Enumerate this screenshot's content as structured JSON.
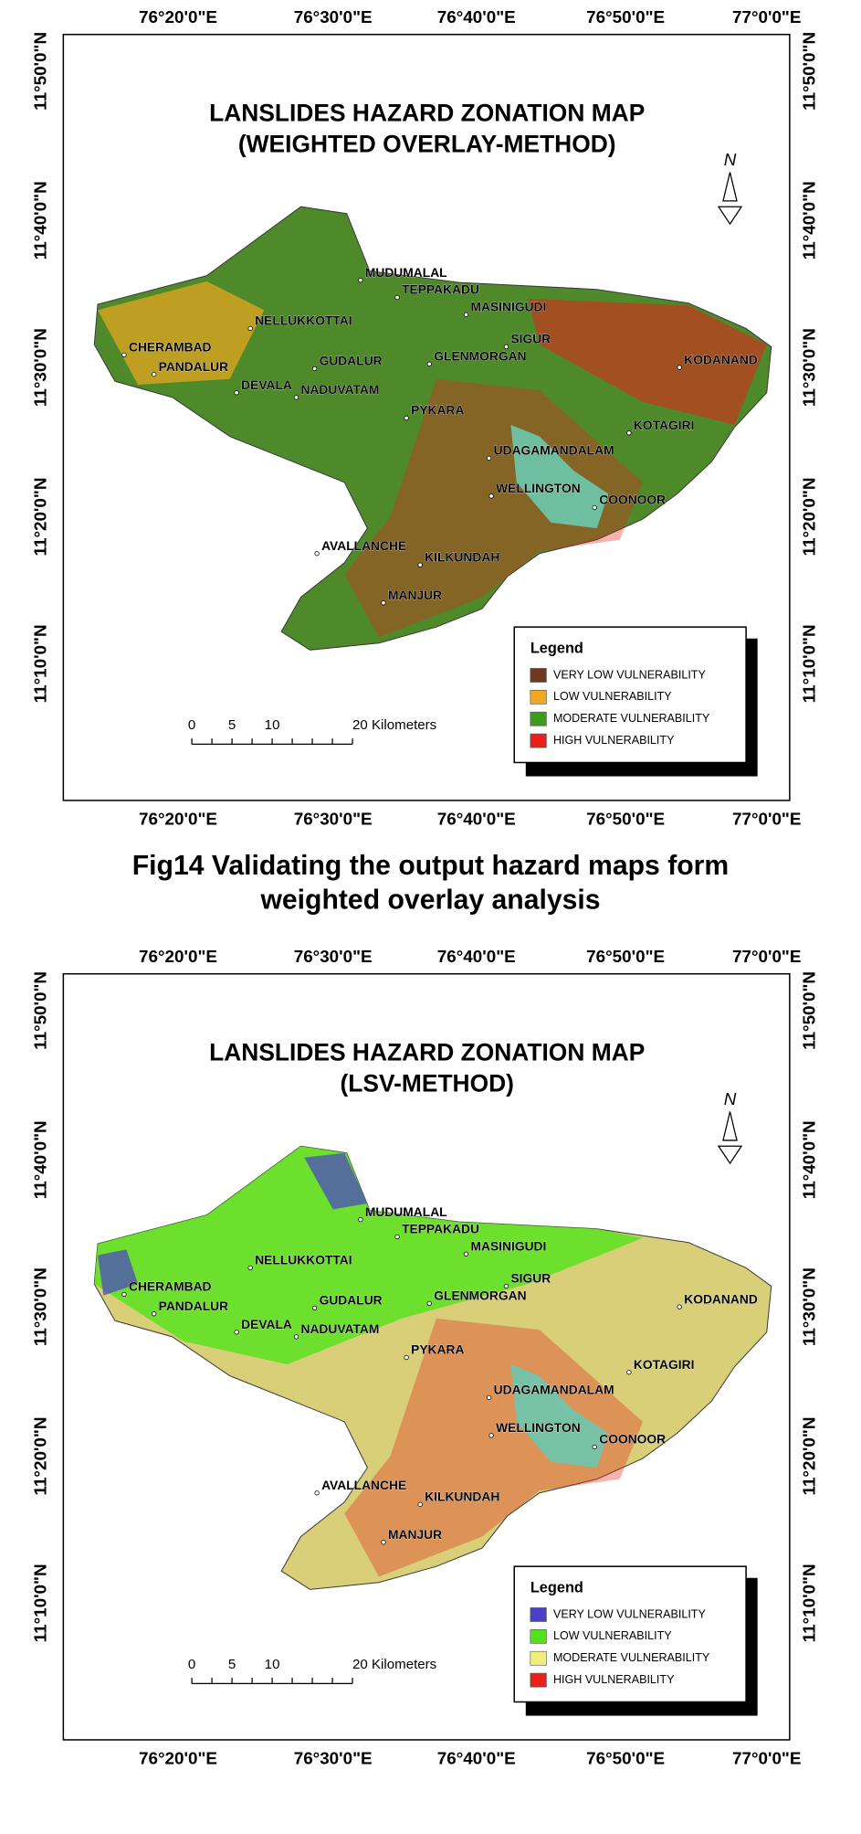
{
  "maps": [
    {
      "title": [
        "LANSLIDES HAZARD ZONATION MAP",
        "(WEIGHTED OVERLAY-METHOD)"
      ],
      "lon_labels": [
        "76°20'0\"E",
        "76°30'0\"E",
        "76°40'0\"E",
        "76°50'0\"E",
        "77°0'0\"E"
      ],
      "lat_labels": [
        "11°50'0\"N",
        "11°40'0\"N",
        "11°30'0\"N",
        "11°20'0\"N",
        "11°10'0\"N"
      ],
      "places": [
        "MUDUMALAL",
        "TEPPAKADU",
        "MASINIGUDI",
        "NELLUKKOTTAI",
        "CHERAMBAD",
        "SIGUR",
        "PANDALUR",
        "GUDALUR",
        "GLENMORGAN",
        "KODANAND",
        "DEVALA",
        "NADUVATAM",
        "PYKARA",
        "KOTAGIRI",
        "UDAGAMANDALAM",
        "WELLINGTON",
        "COONOOR",
        "AVALLANCHE",
        "KILKUNDAH",
        "MANJUR"
      ],
      "north": "N",
      "scale": [
        "0",
        "5",
        "10",
        "20 Kilometers"
      ],
      "legend": {
        "title": "Legend",
        "items": [
          {
            "label": "VERY LOW VULNERABILITY",
            "color": "#6b3a1f"
          },
          {
            "label": "LOW VULNERABILITY",
            "color": "#f0a820"
          },
          {
            "label": "MODERATE VULNERABILITY",
            "color": "#3e9a1e"
          },
          {
            "label": "HIGH VULNERABILITY",
            "color": "#e8201c"
          }
        ]
      },
      "base_color": "#4f8a2a"
    },
    {
      "title": [
        "LANSLIDES HAZARD ZONATION MAP",
        "(LSV-METHOD)"
      ],
      "lon_labels": [
        "76°20'0\"E",
        "76°30'0\"E",
        "76°40'0\"E",
        "76°50'0\"E",
        "77°0'0\"E"
      ],
      "lat_labels": [
        "11°50'0\"N",
        "11°40'0\"N",
        "11°30'0\"N",
        "11°20'0\"N",
        "11°10'0\"N"
      ],
      "places": [
        "MUDUMALAL",
        "TEPPAKADU",
        "MASINIGUDI",
        "NELLUKKOTTAI",
        "CHERAMBAD",
        "SIGUR",
        "PANDALUR",
        "GUDALUR",
        "GLENMORGAN",
        "KODANAND",
        "DEVALA",
        "NADUVATAM",
        "PYKARA",
        "KOTAGIRI",
        "UDAGAMANDALAM",
        "WELLINGTON",
        "COONOOR",
        "AVALLANCHE",
        "KILKUNDAH",
        "MANJUR"
      ],
      "north": "N",
      "scale": [
        "0",
        "5",
        "10",
        "20 Kilometers"
      ],
      "legend": {
        "title": "Legend",
        "items": [
          {
            "label": "VERY LOW VULNERABILITY",
            "color": "#4a3fc8"
          },
          {
            "label": "LOW VULNERABILITY",
            "color": "#52e21a"
          },
          {
            "label": "MODERATE VULNERABILITY",
            "color": "#f2ee7a"
          },
          {
            "label": "HIGH VULNERABILITY",
            "color": "#e8201c"
          }
        ]
      },
      "base_color": "#d8cf78"
    }
  ],
  "caption": [
    "Fig14 Validating the output hazard maps form",
    "weighted overlay analysis"
  ]
}
